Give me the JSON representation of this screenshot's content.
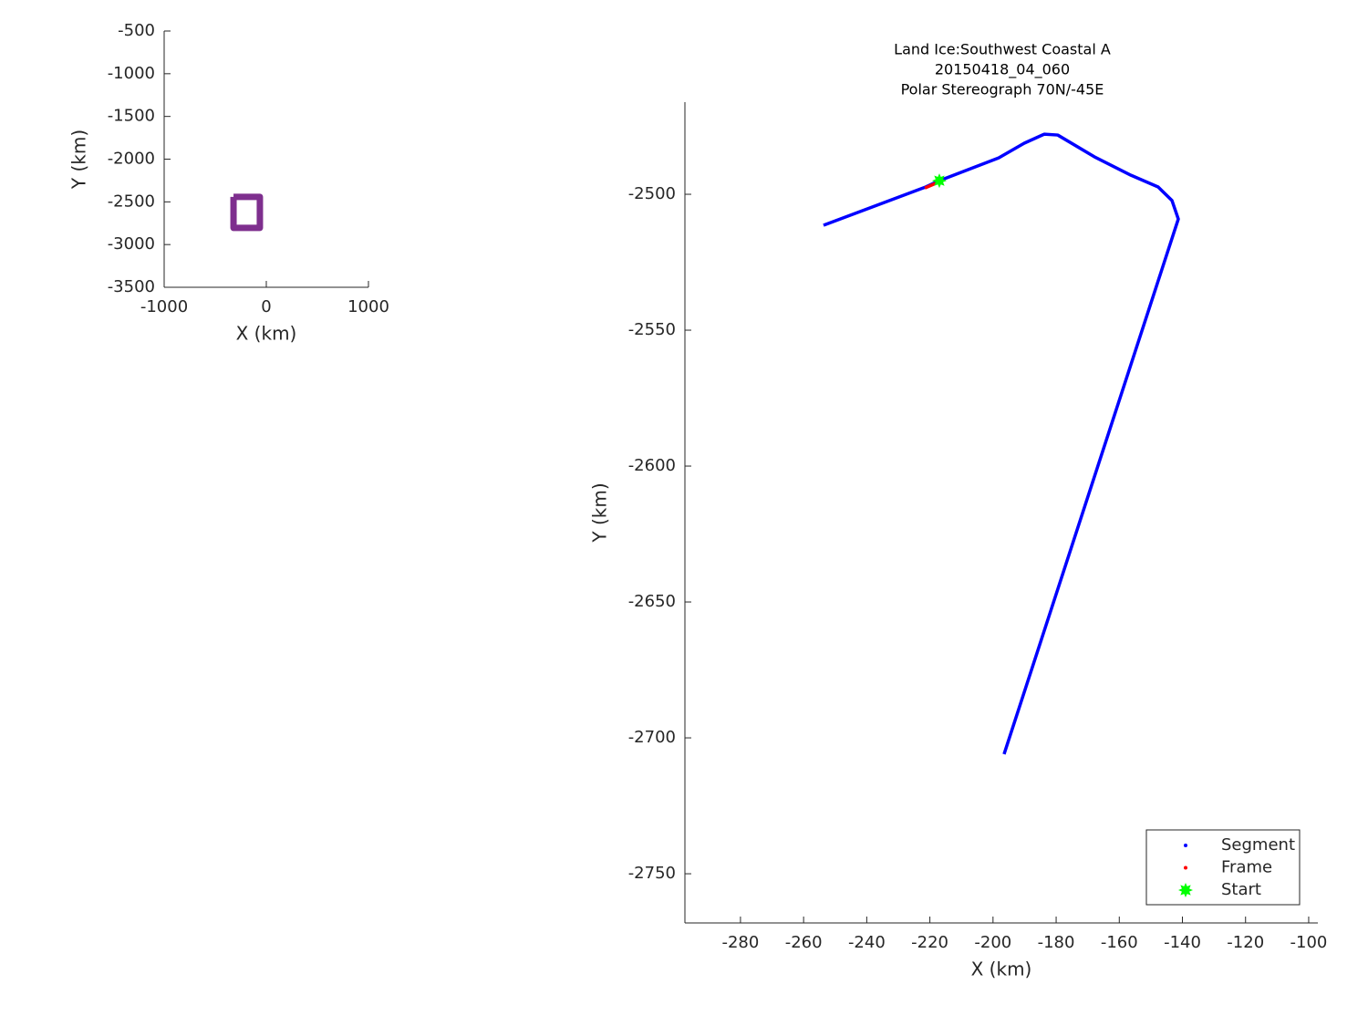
{
  "chart_data": [
    {
      "type": "line",
      "xlabel": "X (km)",
      "ylabel": "Y (km)",
      "xlim": [
        -1000,
        1000
      ],
      "ylim": [
        -3500,
        -500
      ],
      "xticks": [
        -1000,
        0,
        1000
      ],
      "yticks": [
        -500,
        -1000,
        -1500,
        -2000,
        -2500,
        -3000,
        -3500
      ],
      "series": [
        {
          "color": "#7e2f8e",
          "x": [
            -321,
            -63,
            -63,
            -321,
            -321
          ],
          "values": [
            -2442,
            -2442,
            -2805,
            -2805,
            -2442
          ]
        }
      ]
    },
    {
      "type": "line",
      "title": [
        "Land Ice:Southwest Coastal A",
        "20150418_04_060",
        "Polar Stereograph 70N/-45E"
      ],
      "xlabel": "X (km)",
      "ylabel": "Y (km)",
      "xlim": [
        -297.6,
        -97.1
      ],
      "ylim": [
        -2768.1,
        -2466.1
      ],
      "xticks": [
        -280,
        -260,
        -240,
        -220,
        -200,
        -180,
        -160,
        -140,
        -120,
        -100
      ],
      "yticks": [
        -2500,
        -2550,
        -2600,
        -2650,
        -2700,
        -2750
      ],
      "legend": "southeast",
      "series": [
        {
          "name": "Segment",
          "color": "#0000ff",
          "style": "line",
          "x": [
            -253.7,
            -221.3,
            -217.0,
            -198.2,
            -190.1,
            -183.8,
            -179.5,
            -167.9,
            -156.3,
            -147.7,
            -143.3,
            -141.3,
            -196.5
          ],
          "values": [
            -2511.4,
            -2497.3,
            -2495.0,
            -2486.6,
            -2481.2,
            -2477.9,
            -2478.2,
            -2486.2,
            -2493.0,
            -2497.3,
            -2502.3,
            -2509.1,
            -2706.0
          ]
        },
        {
          "name": "Frame",
          "color": "#ff0000",
          "style": "line",
          "x": [
            -221.6,
            -218.2
          ],
          "values": [
            -2497.7,
            -2496.0
          ]
        },
        {
          "name": "Start",
          "color": "#00ff00",
          "style": "marker",
          "x": [
            -217.0
          ],
          "values": [
            -2495.0
          ]
        }
      ]
    }
  ]
}
